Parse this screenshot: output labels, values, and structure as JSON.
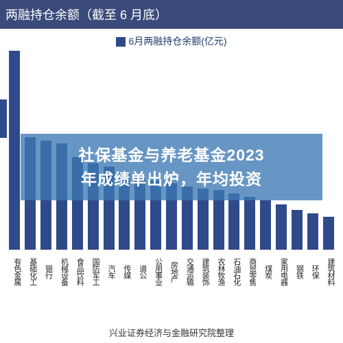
{
  "header": {
    "title": "两融持仓余额（截至 6 月底）"
  },
  "legend": {
    "label": "6月两融持仓余额(亿元)"
  },
  "chart": {
    "type": "bar",
    "bar_color": "#2f4a8a",
    "background_color": "#ffffff",
    "ymax": 300,
    "categories": [
      "有色金属",
      "基础化工",
      "银行",
      "机械设备",
      "食品饮料",
      "国防军工",
      "汽车",
      "传媒",
      "道公",
      "公用事业",
      "房地产",
      "交通运输",
      "建筑装饰",
      "农林牧渔",
      "石油石化",
      "商贸零售",
      "煤炭",
      "家用电器",
      "钢铁",
      "环保",
      "建筑材料"
    ],
    "values": [
      300,
      170,
      165,
      160,
      140,
      130,
      125,
      115,
      108,
      105,
      100,
      95,
      92,
      90,
      85,
      80,
      75,
      68,
      60,
      55,
      50
    ],
    "label_fontsize": 11
  },
  "overlay": {
    "line1": "社保基金与养老基金2023",
    "line2": "年成绩单出炉，年均投资",
    "bg_color": "rgba(60,120,180,0.78)",
    "text_color": "#ffffff",
    "fontsize": 23
  },
  "source": {
    "text": "兴业证券经济与金融研究院整理"
  }
}
